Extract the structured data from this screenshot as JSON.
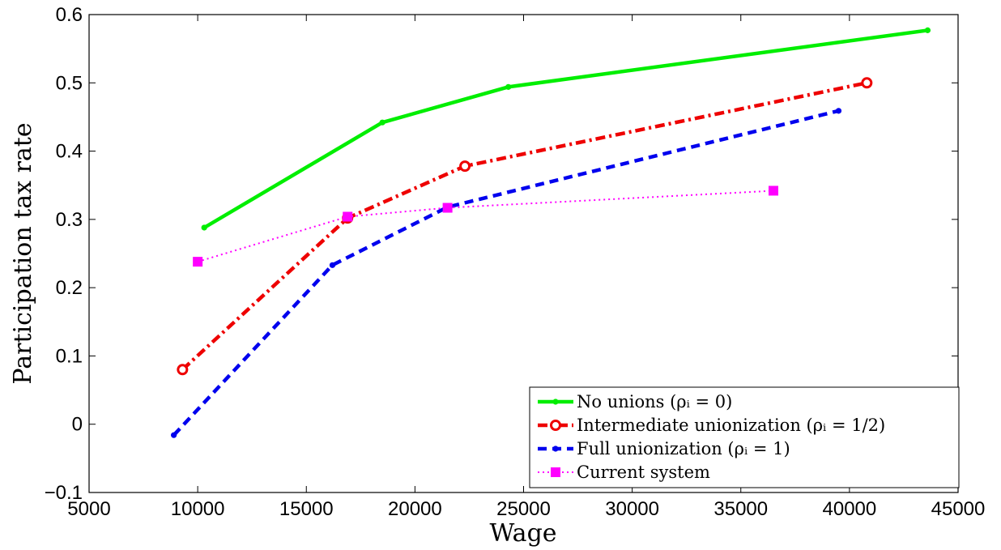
{
  "chart_data": {
    "type": "line",
    "xlabel": "Wage",
    "ylabel": "Participation tax rate",
    "xlim": [
      5000,
      45000
    ],
    "ylim": [
      -0.1,
      0.6
    ],
    "xticks": [
      5000,
      10000,
      15000,
      20000,
      25000,
      30000,
      35000,
      40000,
      45000
    ],
    "yticks": [
      -0.1,
      0,
      0.1,
      0.2,
      0.3,
      0.4,
      0.5,
      0.6
    ],
    "xtick_labels": [
      "5000",
      "10000",
      "15000",
      "20000",
      "25000",
      "30000",
      "35000",
      "40000",
      "45000"
    ],
    "ytick_labels": [
      "−0.1",
      "0",
      "0.1",
      "0.2",
      "0.3",
      "0.4",
      "0.5",
      "0.6"
    ],
    "grid": false,
    "legend_position": "bottom-right",
    "series": [
      {
        "name": "No unions (ρᵢ = 0)",
        "color": "#00ee00",
        "line_style": "solid",
        "marker": "dot",
        "x": [
          10300,
          18500,
          24300,
          43600
        ],
        "y": [
          0.288,
          0.442,
          0.494,
          0.577
        ]
      },
      {
        "name": "Intermediate unionization (ρᵢ = 1/2)",
        "color": "#ee0000",
        "line_style": "dashdot",
        "marker": "circle",
        "x": [
          9300,
          16900,
          22300,
          40800
        ],
        "y": [
          0.08,
          0.302,
          0.378,
          0.5
        ]
      },
      {
        "name": "Full unionization (ρᵢ = 1)",
        "color": "#0000ee",
        "line_style": "dashed",
        "marker": "dot",
        "x": [
          8900,
          16200,
          21500,
          39500
        ],
        "y": [
          -0.016,
          0.233,
          0.318,
          0.459
        ]
      },
      {
        "name": "Current system",
        "color": "#ff00ff",
        "line_style": "dotted",
        "marker": "square",
        "x": [
          10000,
          16900,
          21500,
          36500
        ],
        "y": [
          0.238,
          0.304,
          0.317,
          0.342
        ]
      }
    ]
  }
}
